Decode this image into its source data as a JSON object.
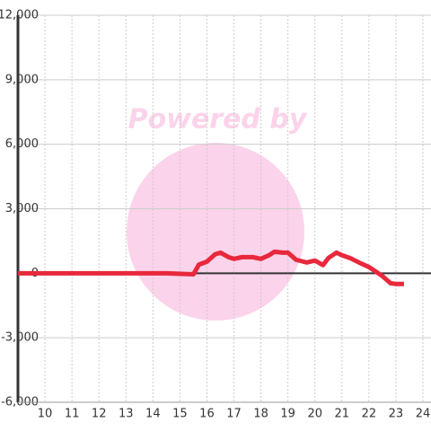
{
  "chart_data": {
    "type": "line",
    "watermark": "Powered by",
    "x": [
      9,
      14.5,
      15.5,
      15.7,
      16,
      16.3,
      16.5,
      16.8,
      17,
      17.3,
      17.7,
      18,
      18.3,
      18.5,
      18.8,
      19,
      19.3,
      19.7,
      20,
      20.3,
      20.5,
      20.8,
      21,
      21.3,
      21.7,
      22,
      22.3,
      22.5,
      22.8,
      23,
      23.3
    ],
    "series": [
      {
        "color": "#e8283c",
        "values": [
          0,
          0,
          -50,
          400,
          540,
          880,
          960,
          750,
          670,
          750,
          750,
          670,
          840,
          1000,
          960,
          960,
          630,
          500,
          590,
          380,
          710,
          960,
          840,
          710,
          460,
          290,
          40,
          -130,
          -460,
          -500,
          -500
        ]
      }
    ],
    "xlim": [
      9,
      24.3
    ],
    "ylim": [
      -6000,
      12000
    ],
    "xticks": [
      10,
      11,
      12,
      13,
      14,
      15,
      16,
      17,
      18,
      19,
      20,
      21,
      22,
      23,
      24
    ],
    "yticks": [
      {
        "value": -6000,
        "label": "-6,000"
      },
      {
        "value": -3000,
        "label": "-3,000"
      },
      0,
      {
        "value": 3000,
        "label": "3,000"
      },
      {
        "value": 6000,
        "label": "6,000"
      },
      {
        "value": 9000,
        "label": "9,000"
      },
      {
        "value": 12000,
        "label": "12,000"
      }
    ],
    "grid": true
  }
}
